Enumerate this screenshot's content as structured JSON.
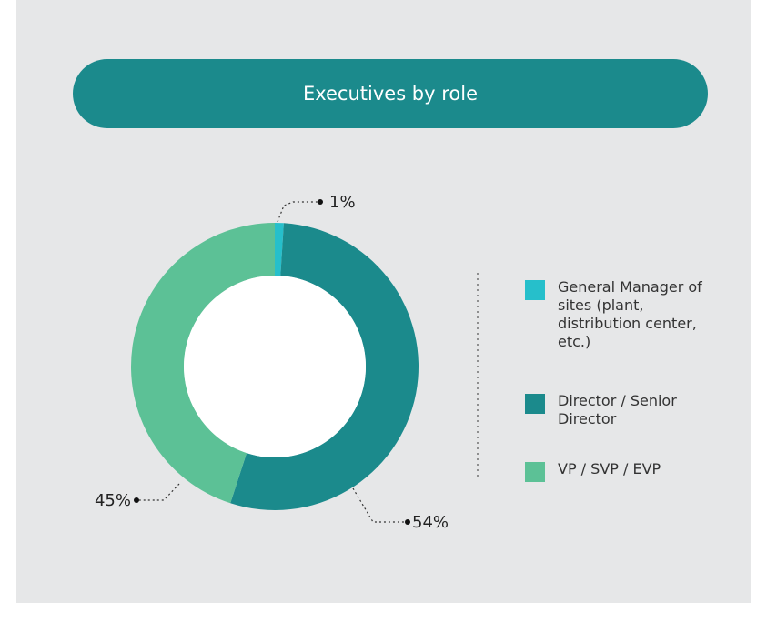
{
  "chart_data": {
    "type": "pie",
    "title": "Executives by role",
    "categories": [
      "General Manager of sites (plant, distribution center, etc.)",
      "Director / Senior Director",
      "VP / SVP / EVP"
    ],
    "values": [
      1,
      54,
      45
    ],
    "value_labels": [
      "1%",
      "54%",
      "45%"
    ],
    "colors": [
      "#26bfcb",
      "#1b8a8c",
      "#5cc196"
    ],
    "donut": true
  }
}
